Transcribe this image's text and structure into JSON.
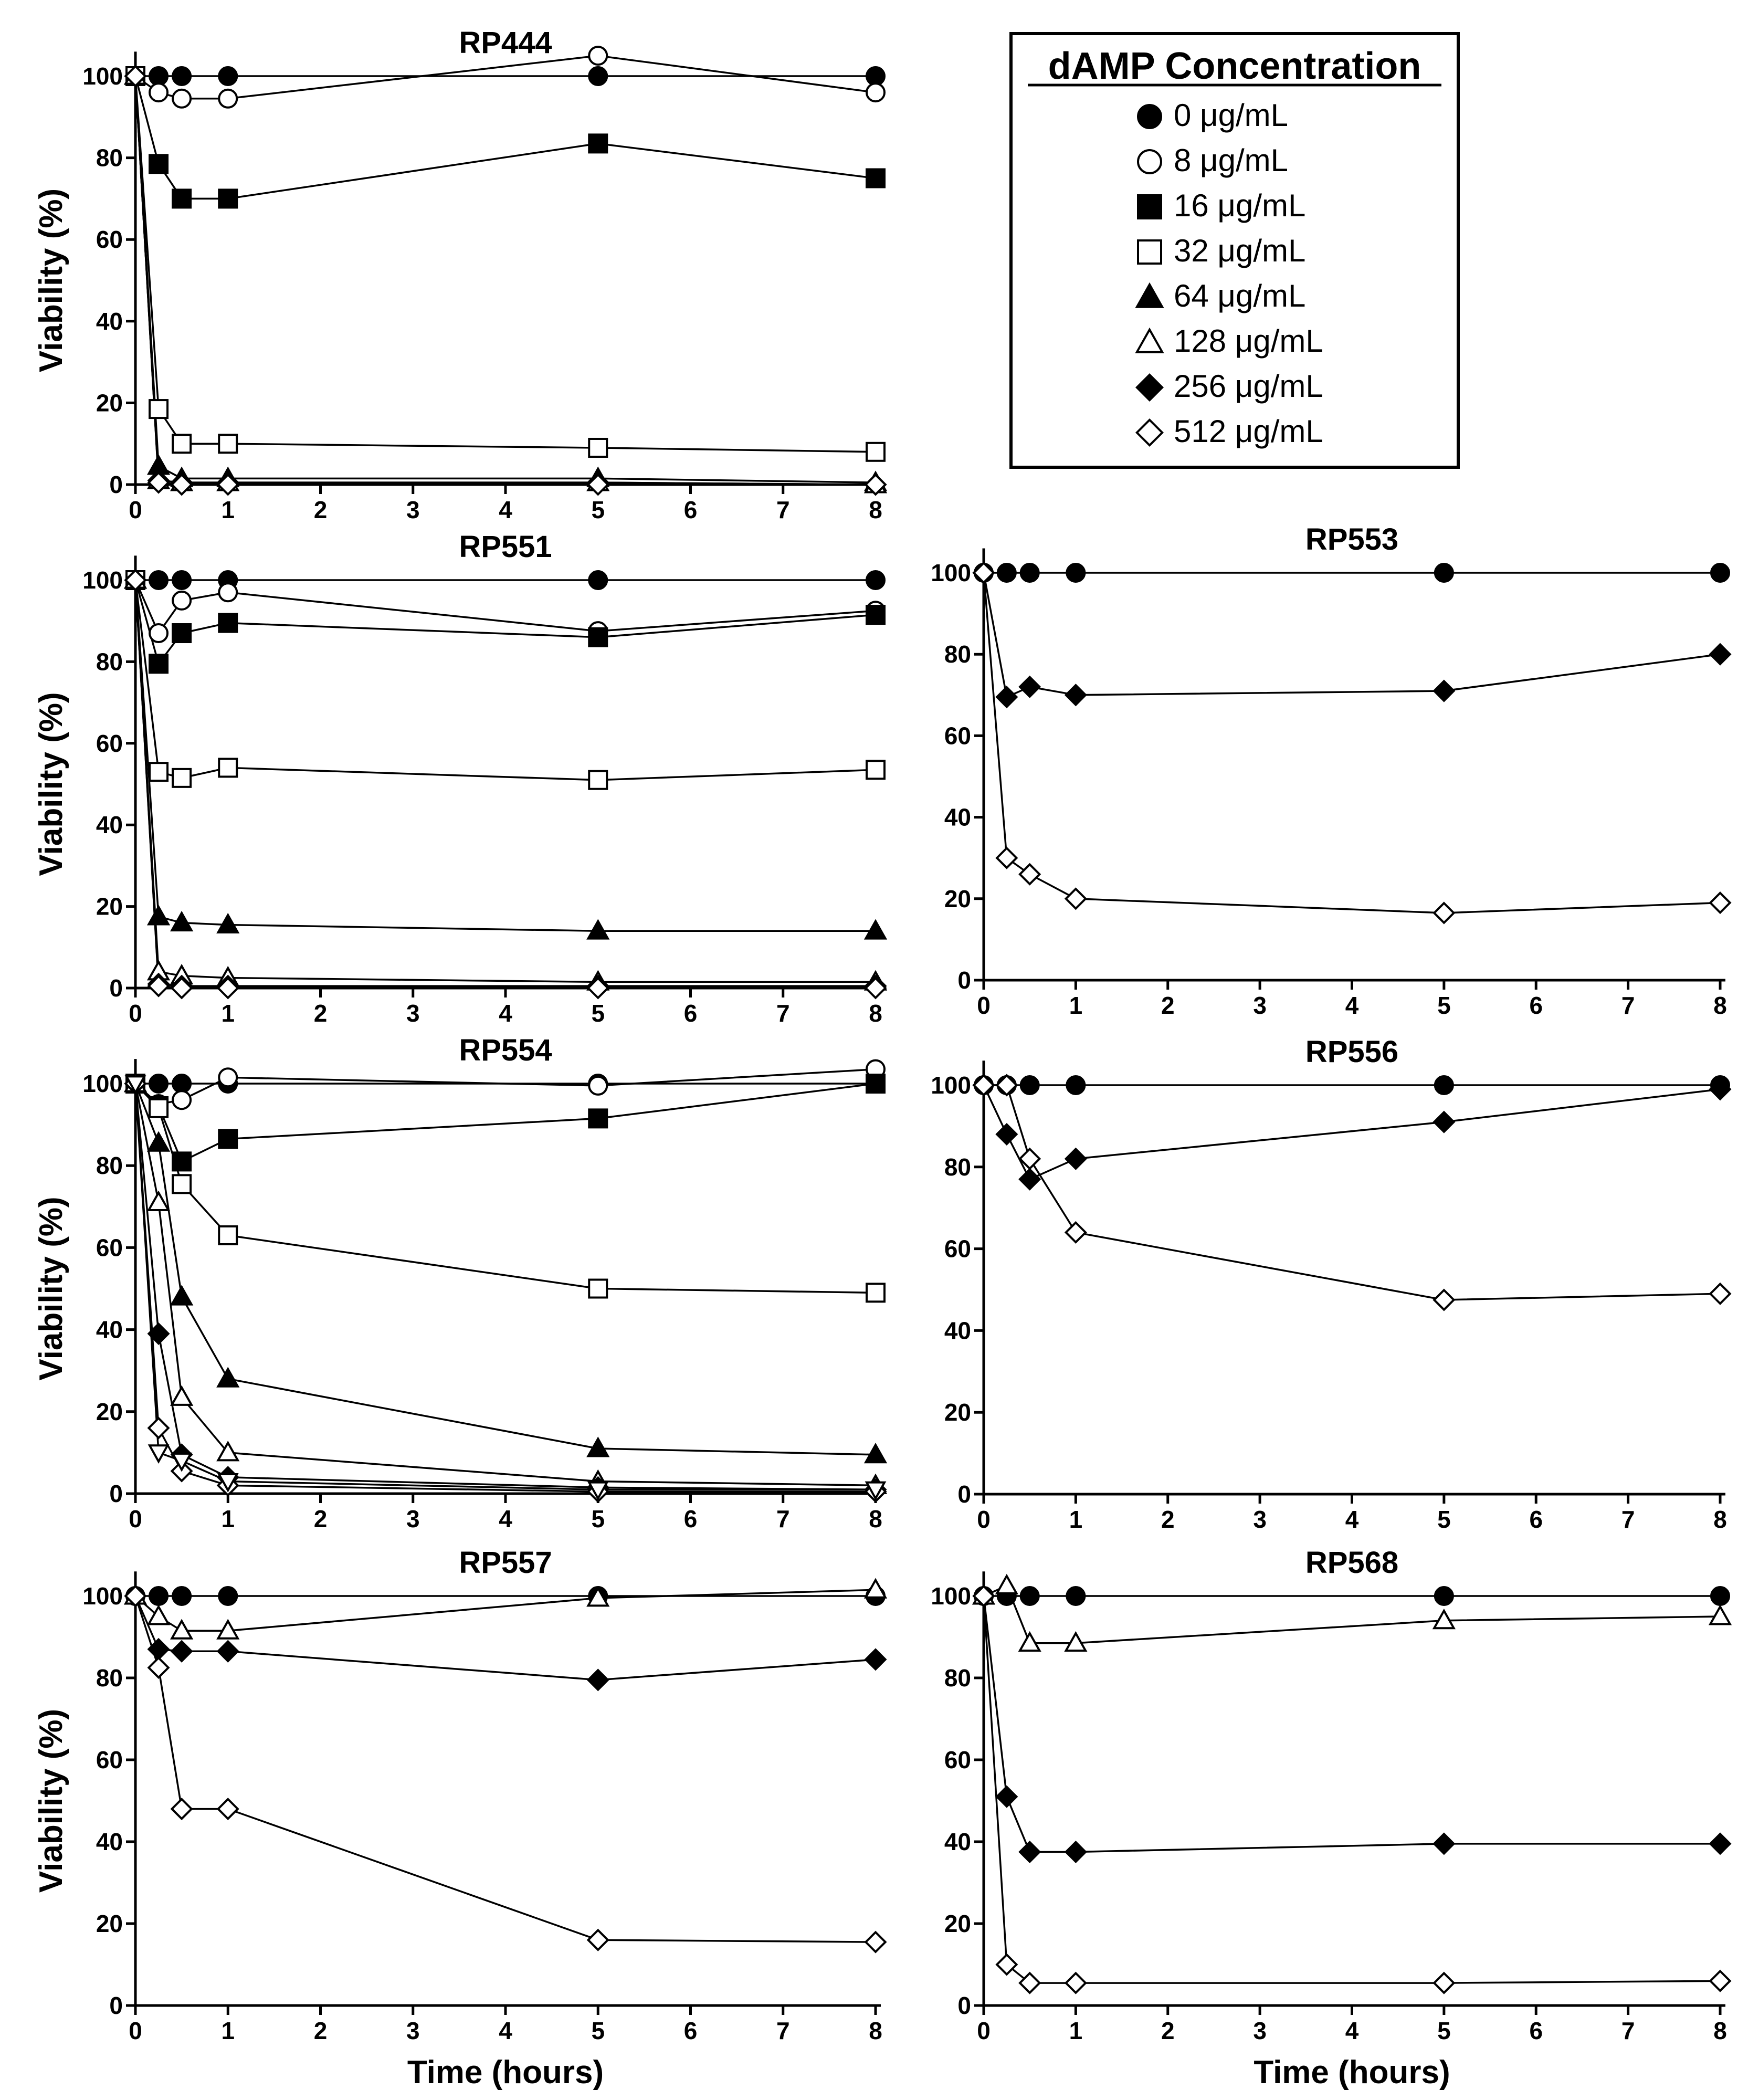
{
  "legend": {
    "title": "dAMP Concentration",
    "items": [
      {
        "label": "0 μg/mL",
        "marker": "circle-filled"
      },
      {
        "label": "8 μg/mL",
        "marker": "circle-open"
      },
      {
        "label": "16 μg/mL",
        "marker": "square-filled"
      },
      {
        "label": "32 μg/mL",
        "marker": "square-open"
      },
      {
        "label": "64 μg/mL",
        "marker": "triangle-filled"
      },
      {
        "label": "128 μg/mL",
        "marker": "triangle-open"
      },
      {
        "label": "256 μg/mL",
        "marker": "diamond-filled"
      },
      {
        "label": "512 μg/mL",
        "marker": "diamond-open"
      }
    ]
  },
  "chart_data": [
    {
      "type": "line",
      "title": "RP444",
      "xlabel": "",
      "ylabel": "Viability (%)",
      "xlim": [
        0,
        8
      ],
      "ylim": [
        0,
        100
      ],
      "xticks": [
        0,
        1,
        2,
        3,
        4,
        5,
        6,
        7,
        8
      ],
      "yticks": [
        0,
        20,
        40,
        60,
        80,
        100
      ],
      "x": [
        0,
        0.25,
        0.5,
        1,
        5,
        8
      ],
      "series": [
        {
          "name": "0 μg/mL",
          "marker": "circle-filled",
          "values": [
            100,
            100,
            100,
            100,
            100,
            100
          ]
        },
        {
          "name": "8 μg/mL",
          "marker": "circle-open",
          "values": [
            100,
            96,
            94.5,
            94.5,
            105,
            96
          ]
        },
        {
          "name": "16 μg/mL",
          "marker": "square-filled",
          "values": [
            100,
            78.5,
            70,
            70,
            83.5,
            75
          ]
        },
        {
          "name": "32 μg/mL",
          "marker": "square-open",
          "values": [
            100,
            18.5,
            10,
            10,
            9,
            8
          ]
        },
        {
          "name": "64 μg/mL",
          "marker": "triangle-filled",
          "values": [
            100,
            4.5,
            1.5,
            1.5,
            1.5,
            0.5
          ]
        },
        {
          "name": "128 μg/mL",
          "marker": "triangle-open",
          "values": [
            100,
            1,
            0.5,
            0.5,
            0.5,
            0
          ]
        },
        {
          "name": "256 μg/mL",
          "marker": "diamond-filled",
          "values": [
            100,
            1,
            0.5,
            0.5,
            0.5,
            0
          ]
        },
        {
          "name": "512 μg/mL",
          "marker": "diamond-open",
          "values": [
            100,
            0.5,
            0,
            0,
            0,
            0
          ]
        }
      ]
    },
    {
      "type": "line",
      "title": "RP551",
      "xlabel": "",
      "ylabel": "Viability (%)",
      "xlim": [
        0,
        8
      ],
      "ylim": [
        0,
        100
      ],
      "xticks": [
        0,
        1,
        2,
        3,
        4,
        5,
        6,
        7,
        8
      ],
      "yticks": [
        0,
        20,
        40,
        60,
        80,
        100
      ],
      "x": [
        0,
        0.25,
        0.5,
        1,
        5,
        8
      ],
      "series": [
        {
          "name": "0 μg/mL",
          "marker": "circle-filled",
          "values": [
            100,
            100,
            100,
            100,
            100,
            100
          ]
        },
        {
          "name": "8 μg/mL",
          "marker": "circle-open",
          "values": [
            100,
            87,
            95,
            97,
            87.5,
            92.5
          ]
        },
        {
          "name": "16 μg/mL",
          "marker": "square-filled",
          "values": [
            100,
            79.5,
            87,
            89.5,
            86,
            91.5
          ]
        },
        {
          "name": "32 μg/mL",
          "marker": "square-open",
          "values": [
            100,
            53,
            51.5,
            54,
            51,
            53.5
          ]
        },
        {
          "name": "64 μg/mL",
          "marker": "triangle-filled",
          "values": [
            100,
            17.5,
            16,
            15.5,
            14,
            14
          ]
        },
        {
          "name": "128 μg/mL",
          "marker": "triangle-open",
          "values": [
            100,
            4,
            3,
            2.5,
            1.5,
            1.5
          ]
        },
        {
          "name": "256 μg/mL",
          "marker": "diamond-filled",
          "values": [
            100,
            1,
            0.5,
            0.5,
            0.5,
            0.5
          ]
        },
        {
          "name": "512 μg/mL",
          "marker": "diamond-open",
          "values": [
            100,
            0.5,
            0,
            0,
            0,
            0
          ]
        }
      ]
    },
    {
      "type": "line",
      "title": "RP553",
      "xlabel": "",
      "ylabel": "",
      "xlim": [
        0,
        8
      ],
      "ylim": [
        0,
        100
      ],
      "xticks": [
        0,
        1,
        2,
        3,
        4,
        5,
        6,
        7,
        8
      ],
      "yticks": [
        0,
        20,
        40,
        60,
        80,
        100
      ],
      "x": [
        0,
        0.25,
        0.5,
        1,
        5,
        8
      ],
      "series": [
        {
          "name": "0 μg/mL",
          "marker": "circle-filled",
          "values": [
            100,
            100,
            100,
            100,
            100,
            100
          ]
        },
        {
          "name": "256 μg/mL",
          "marker": "diamond-filled",
          "values": [
            100,
            69.5,
            72,
            70,
            71,
            80
          ]
        },
        {
          "name": "512 μg/mL",
          "marker": "diamond-open",
          "values": [
            100,
            30,
            26,
            20,
            16.5,
            19
          ]
        }
      ]
    },
    {
      "type": "line",
      "title": "RP554",
      "xlabel": "",
      "ylabel": "Viability (%)",
      "xlim": [
        0,
        8
      ],
      "ylim": [
        0,
        100
      ],
      "xticks": [
        0,
        1,
        2,
        3,
        4,
        5,
        6,
        7,
        8
      ],
      "yticks": [
        0,
        20,
        40,
        60,
        80,
        100
      ],
      "x": [
        0,
        0.25,
        0.5,
        1,
        5,
        8
      ],
      "series": [
        {
          "name": "0 μg/mL",
          "marker": "circle-filled",
          "values": [
            100,
            100,
            100,
            100,
            100,
            100
          ]
        },
        {
          "name": "8 μg/mL",
          "marker": "circle-open",
          "values": [
            100,
            95,
            96,
            101.5,
            99.5,
            103.5
          ]
        },
        {
          "name": "16 μg/mL",
          "marker": "square-filled",
          "values": [
            100,
            94.5,
            81,
            86.5,
            91.5,
            100
          ]
        },
        {
          "name": "32 μg/mL",
          "marker": "square-open",
          "values": [
            100,
            94,
            75.5,
            63,
            50,
            49
          ]
        },
        {
          "name": "64 μg/mL",
          "marker": "triangle-filled",
          "values": [
            100,
            85.5,
            48,
            28,
            11,
            9.5
          ]
        },
        {
          "name": "128 μg/mL",
          "marker": "triangle-open",
          "values": [
            100,
            71,
            23.5,
            10,
            3,
            2
          ]
        },
        {
          "name": "256 μg/mL",
          "marker": "diamond-filled",
          "values": [
            100,
            39,
            9.5,
            4,
            1.5,
            1
          ]
        },
        {
          "name": "512 μg/mL",
          "marker": "diamond-open",
          "values": [
            100,
            16,
            5.5,
            2,
            0.5,
            0.5
          ]
        },
        {
          "name": "",
          "marker": "triangle-down-open",
          "values": [
            100,
            10,
            8,
            3,
            1,
            1
          ]
        }
      ]
    },
    {
      "type": "line",
      "title": "RP556",
      "xlabel": "",
      "ylabel": "",
      "xlim": [
        0,
        8
      ],
      "ylim": [
        0,
        100
      ],
      "xticks": [
        0,
        1,
        2,
        3,
        4,
        5,
        6,
        7,
        8
      ],
      "yticks": [
        0,
        20,
        40,
        60,
        80,
        100
      ],
      "x": [
        0,
        0.25,
        0.5,
        1,
        5,
        8
      ],
      "series": [
        {
          "name": "0 μg/mL",
          "marker": "circle-filled",
          "values": [
            100,
            100,
            100,
            100,
            100,
            100
          ]
        },
        {
          "name": "256 μg/mL",
          "marker": "diamond-filled",
          "values": [
            100,
            88,
            77,
            82,
            91,
            99
          ]
        },
        {
          "name": "512 μg/mL",
          "marker": "diamond-open",
          "values": [
            100,
            100,
            82,
            64,
            47.5,
            49
          ]
        }
      ]
    },
    {
      "type": "line",
      "title": "RP557",
      "xlabel": "Time (hours)",
      "ylabel": "Viability (%)",
      "xlim": [
        0,
        8
      ],
      "ylim": [
        0,
        100
      ],
      "xticks": [
        0,
        1,
        2,
        3,
        4,
        5,
        6,
        7,
        8
      ],
      "yticks": [
        0,
        20,
        40,
        60,
        80,
        100
      ],
      "x": [
        0,
        0.25,
        0.5,
        1,
        5,
        8
      ],
      "series": [
        {
          "name": "0 μg/mL",
          "marker": "circle-filled",
          "values": [
            100,
            100,
            100,
            100,
            100,
            100
          ]
        },
        {
          "name": "128 μg/mL",
          "marker": "triangle-open",
          "values": [
            100,
            95,
            91.5,
            91.5,
            99.5,
            101.5
          ]
        },
        {
          "name": "256 μg/mL",
          "marker": "diamond-filled",
          "values": [
            100,
            87,
            86.5,
            86.5,
            79.5,
            84.5
          ]
        },
        {
          "name": "512 μg/mL",
          "marker": "diamond-open",
          "values": [
            100,
            82.5,
            48,
            48,
            16,
            15.5
          ]
        }
      ]
    },
    {
      "type": "line",
      "title": "RP568",
      "xlabel": "Time (hours)",
      "ylabel": "",
      "xlim": [
        0,
        8
      ],
      "ylim": [
        0,
        100
      ],
      "xticks": [
        0,
        1,
        2,
        3,
        4,
        5,
        6,
        7,
        8
      ],
      "yticks": [
        0,
        20,
        40,
        60,
        80,
        100
      ],
      "x": [
        0,
        0.25,
        0.5,
        1,
        5,
        8
      ],
      "series": [
        {
          "name": "0 μg/mL",
          "marker": "circle-filled",
          "values": [
            100,
            100,
            100,
            100,
            100,
            100
          ]
        },
        {
          "name": "128 μg/mL",
          "marker": "triangle-open",
          "values": [
            100,
            102.5,
            88.5,
            88.5,
            94,
            95
          ]
        },
        {
          "name": "256 μg/mL",
          "marker": "diamond-filled",
          "values": [
            100,
            51,
            37.5,
            37.5,
            39.5,
            39.5
          ]
        },
        {
          "name": "512 μg/mL",
          "marker": "diamond-open",
          "values": [
            100,
            10,
            5.5,
            5.5,
            5.5,
            6
          ]
        }
      ]
    }
  ]
}
